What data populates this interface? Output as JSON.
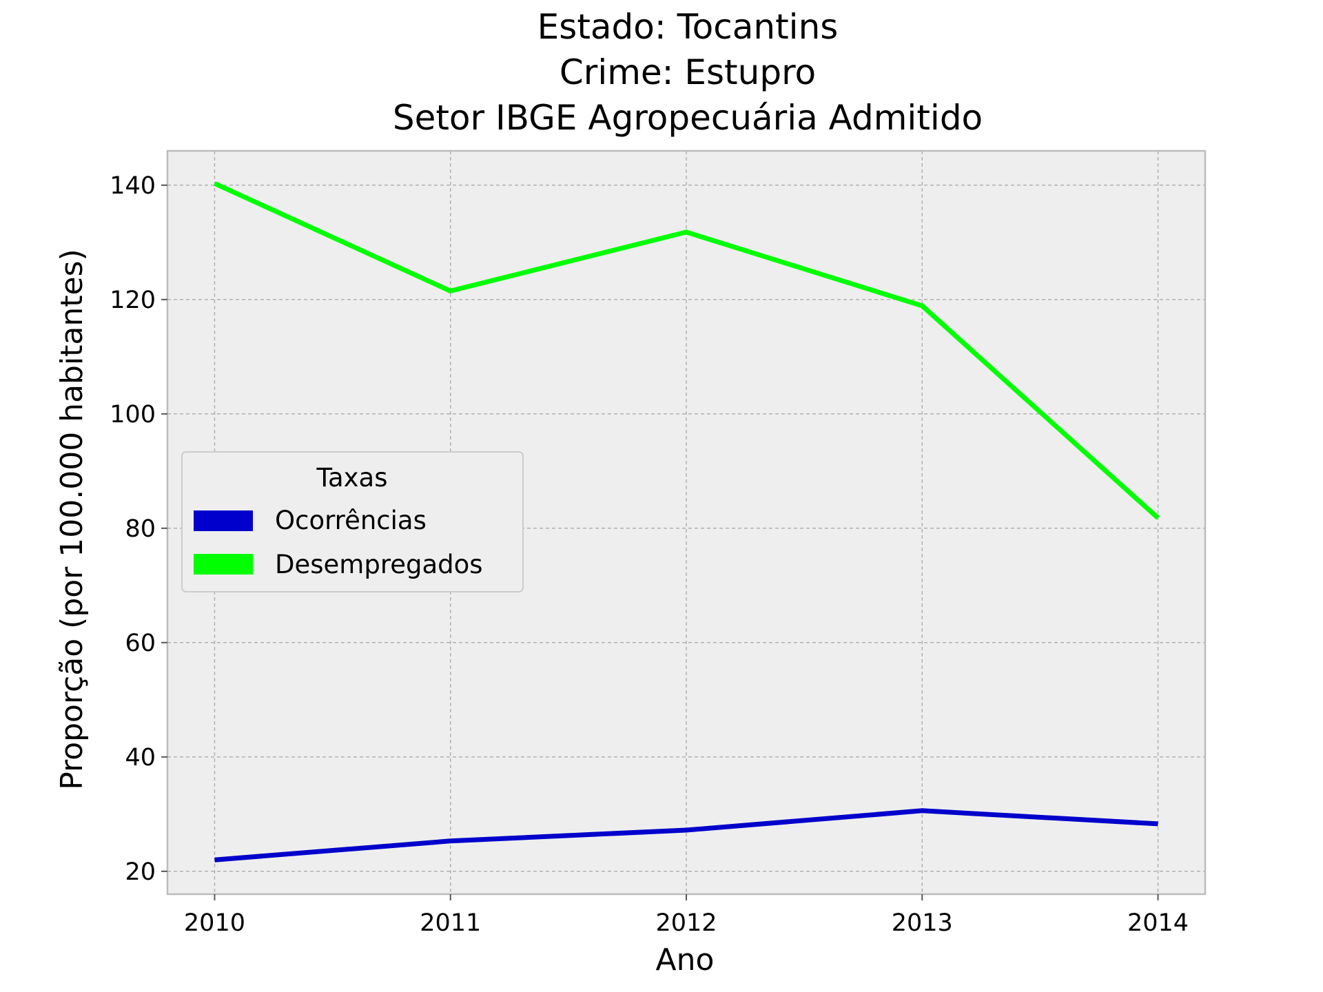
{
  "chart_data": {
    "type": "line",
    "title_lines": [
      "Estado: Tocantins",
      "Crime: Estupro",
      "Setor IBGE  Agropecuária   Admitido"
    ],
    "xlabel": "Ano",
    "ylabel": "Proporção (por 100.000 habitantes)",
    "x": [
      2010,
      2011,
      2012,
      2013,
      2014
    ],
    "x_tick_labels": [
      "2010",
      "2011",
      "2012",
      "2013",
      "2014"
    ],
    "xlim": [
      2009.8,
      2014.2
    ],
    "ylim": [
      16,
      146
    ],
    "y_ticks": [
      20,
      40,
      60,
      80,
      100,
      120,
      140
    ],
    "y_tick_labels": [
      "20",
      "40",
      "60",
      "80",
      "100",
      "120",
      "140"
    ],
    "grid": true,
    "legend": {
      "title": "Taxas",
      "placement": "center-left"
    },
    "series": [
      {
        "name": "Ocorrências",
        "color": "#0000cc",
        "values": [
          22.0,
          25.3,
          27.2,
          30.6,
          28.3
        ]
      },
      {
        "name": "Desempregados",
        "color": "#00ff00",
        "values": [
          140.3,
          121.5,
          131.8,
          118.9,
          81.8
        ]
      }
    ],
    "colors": {
      "plot_background": "#eeeeee",
      "grid": "#b0b0b0",
      "spine": "#bcbcbc"
    }
  }
}
